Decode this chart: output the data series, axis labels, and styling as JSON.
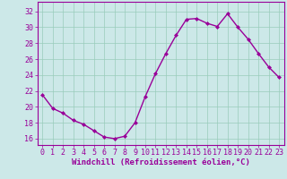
{
  "x": [
    0,
    1,
    2,
    3,
    4,
    5,
    6,
    7,
    8,
    9,
    10,
    11,
    12,
    13,
    14,
    15,
    16,
    17,
    18,
    19,
    20,
    21,
    22,
    23
  ],
  "y": [
    21.5,
    19.8,
    19.2,
    18.3,
    17.8,
    17.0,
    16.2,
    16.0,
    16.3,
    18.0,
    21.3,
    24.2,
    26.7,
    29.0,
    31.0,
    31.1,
    30.5,
    30.1,
    31.7,
    30.0,
    28.5,
    26.7,
    25.0,
    23.7
  ],
  "line_color": "#990099",
  "marker": "D",
  "marker_size": 2.0,
  "linewidth": 1.0,
  "xlabel": "Windchill (Refroidissement éolien,°C)",
  "xlabel_fontsize": 6.5,
  "ylabel_ticks": [
    16,
    18,
    20,
    22,
    24,
    26,
    28,
    30,
    32
  ],
  "ylim": [
    15.2,
    33.2
  ],
  "xlim": [
    -0.5,
    23.5
  ],
  "bg_color": "#cce8e8",
  "grid_color": "#99ccbb",
  "tick_label_fontsize": 6.0
}
